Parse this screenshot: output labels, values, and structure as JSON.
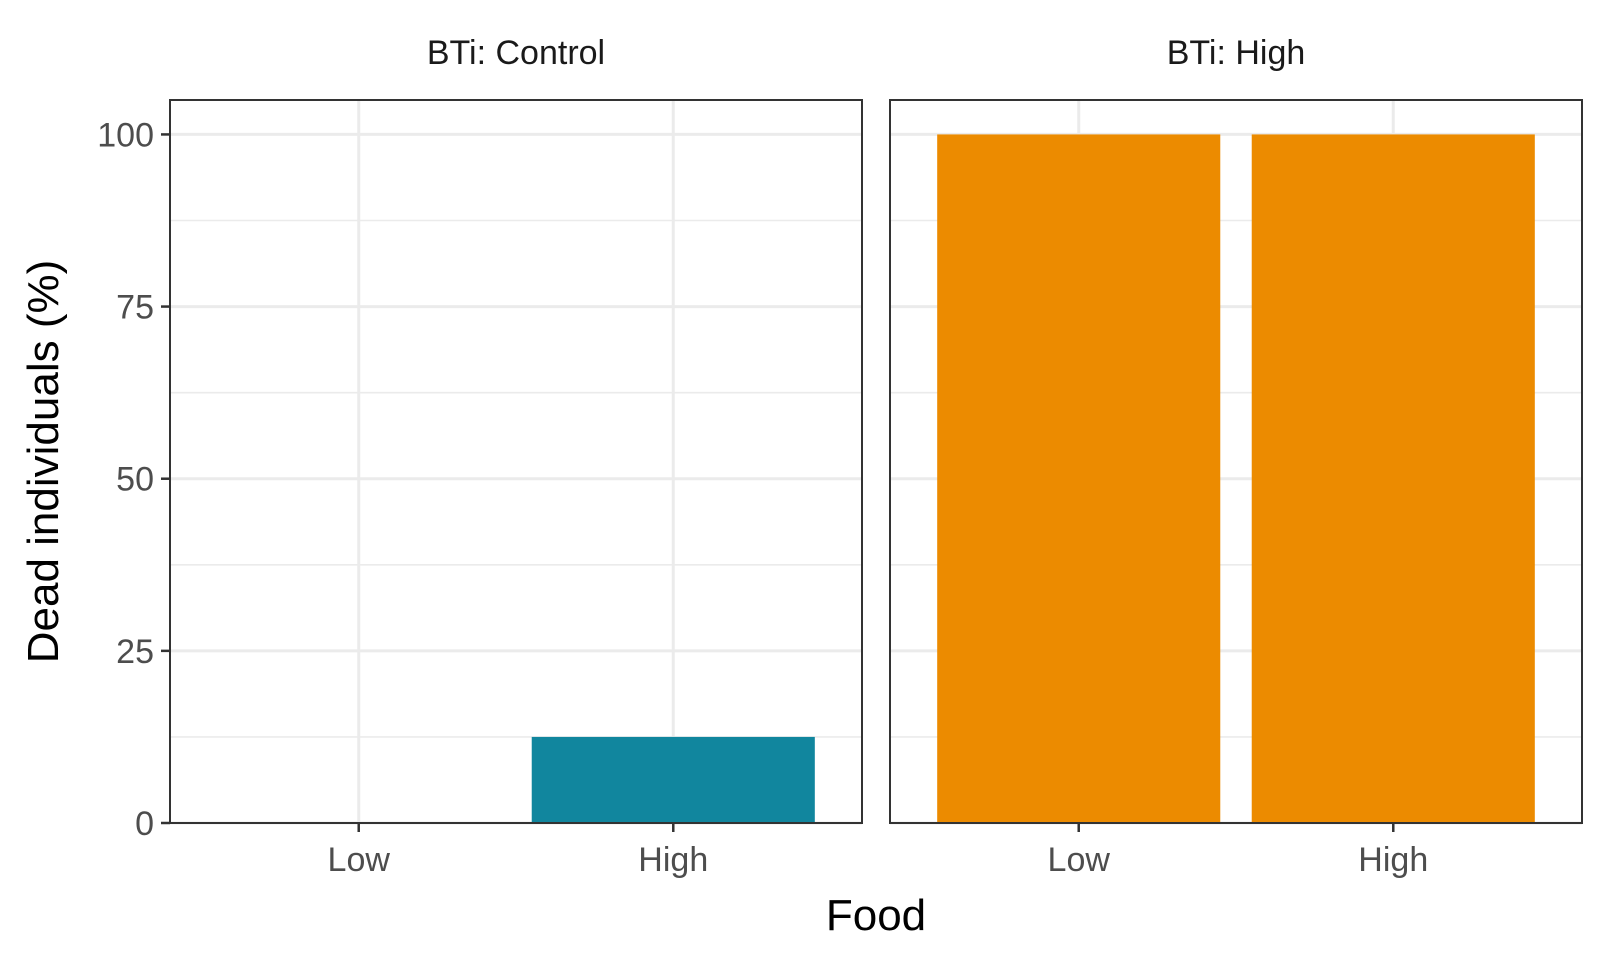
{
  "chart_data": {
    "type": "bar",
    "xlabel": "Food",
    "ylabel": "Dead individuals (%)",
    "categories": [
      "Low",
      "High"
    ],
    "ylim": [
      0,
      105
    ],
    "yticks": [
      0,
      25,
      50,
      75,
      100
    ],
    "grid": true,
    "legend": "none",
    "panels": [
      {
        "title": "BTi: Control",
        "values": [
          0,
          12.5
        ],
        "color": "#11869E"
      },
      {
        "title": "BTi: High",
        "values": [
          100,
          100
        ],
        "color": "#EC8B00"
      }
    ]
  }
}
